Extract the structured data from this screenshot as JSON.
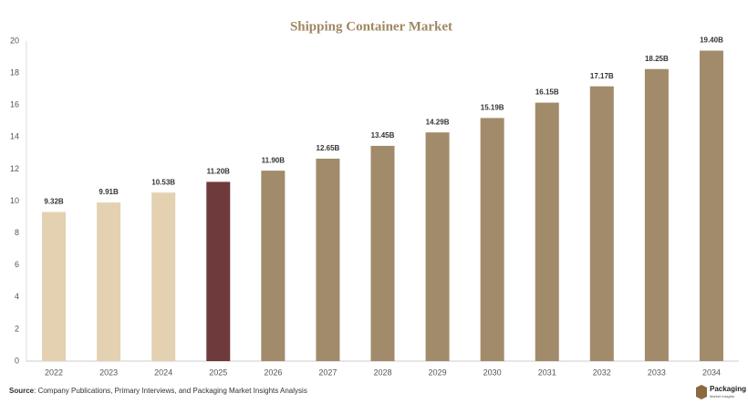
{
  "chart_data": {
    "type": "bar",
    "title": "Shipping Container Market",
    "categories": [
      "2022",
      "2023",
      "2024",
      "2025",
      "2026",
      "2027",
      "2028",
      "2029",
      "2030",
      "2031",
      "2032",
      "2033",
      "2034"
    ],
    "values": [
      9.32,
      9.91,
      10.53,
      11.2,
      11.9,
      12.65,
      13.45,
      14.29,
      15.19,
      16.15,
      17.17,
      18.25,
      19.4
    ],
    "value_labels": [
      "9.32B",
      "9.91B",
      "10.53B",
      "11.20B",
      "11.90B",
      "12.65B",
      "13.45B",
      "14.29B",
      "15.19B",
      "16.15B",
      "17.17B",
      "18.25B",
      "19.40B"
    ],
    "colors": [
      "#e3d1b2",
      "#e3d1b2",
      "#e3d1b2",
      "#6e3a3b",
      "#a28b6a",
      "#a28b6a",
      "#a28b6a",
      "#a28b6a",
      "#a28b6a",
      "#a28b6a",
      "#a28b6a",
      "#a28b6a",
      "#a28b6a"
    ],
    "ylim": [
      0,
      20
    ],
    "yticks": [
      0,
      2,
      4,
      6,
      8,
      10,
      12,
      14,
      16,
      18,
      20
    ],
    "grid": false
  },
  "source_label": "Source",
  "source_text": ": Company Publications, Primary Interviews, and Packaging Market Insights Analysis",
  "logo": {
    "name": "Packaging",
    "tagline": "Market Insights"
  }
}
